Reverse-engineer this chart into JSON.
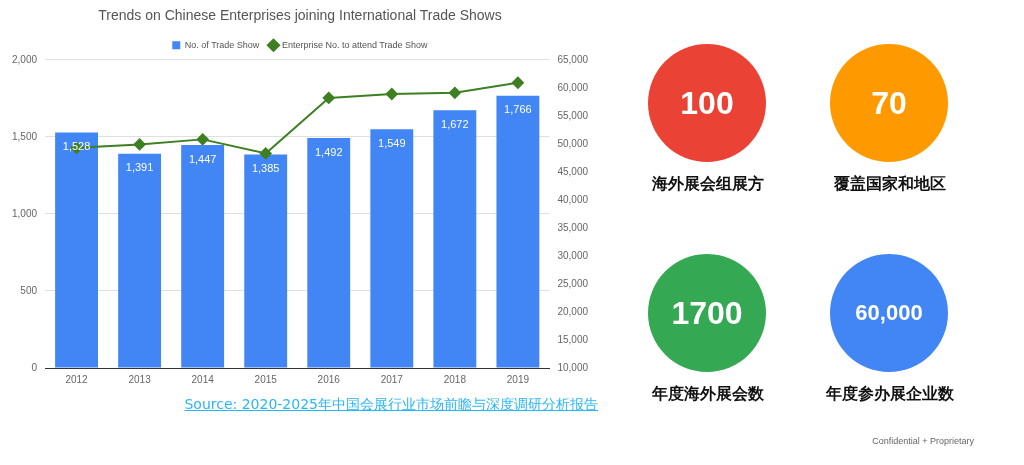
{
  "chart_data": [
    {
      "type": "bar",
      "title": "Trends on Chinese Enterprises joining International Trade Shows",
      "categories": [
        "2012",
        "2013",
        "2014",
        "2015",
        "2016",
        "2017",
        "2018",
        "2019"
      ],
      "series": [
        {
          "name": "No. of Trade Show",
          "type": "bar",
          "color": "#4285f4",
          "values": [
            1528,
            1391,
            1447,
            1385,
            1492,
            1549,
            1672,
            1766
          ],
          "value_labels": [
            "1,528",
            "1,391",
            "1,447",
            "1,385",
            "1,492",
            "1,549",
            "1,672",
            "1,766"
          ]
        },
        {
          "name": "Enterprise No. to attend Trade Show",
          "type": "line",
          "axis": "y2",
          "color": "#3f7f24",
          "marker": "diamond",
          "values": [
            49300,
            49900,
            50800,
            48300,
            58200,
            58900,
            59100,
            60900
          ]
        }
      ],
      "ylim": [
        0,
        2000
      ],
      "yticks": [
        0,
        500,
        {
          "value": 1000,
          "label": "1,000"
        },
        {
          "value": 1500,
          "label": "1,500"
        },
        {
          "value": 2000,
          "label": "2,000"
        }
      ],
      "y2lim": [
        10000,
        65000
      ],
      "y2ticks": [
        {
          "value": 10000,
          "label": "10,000"
        },
        {
          "value": 15000,
          "label": "15,000"
        },
        {
          "value": 20000,
          "label": "20,000"
        },
        {
          "value": 25000,
          "label": "25,000"
        },
        {
          "value": 30000,
          "label": "30,000"
        },
        {
          "value": 35000,
          "label": "35,000"
        },
        {
          "value": 40000,
          "label": "40,000"
        },
        {
          "value": 45000,
          "label": "45,000"
        },
        {
          "value": 50000,
          "label": "50,000"
        },
        {
          "value": 55000,
          "label": "55,000"
        },
        {
          "value": 60000,
          "label": "60,000"
        },
        {
          "value": 65000,
          "label": "65,000"
        }
      ],
      "grid": "y",
      "legend": "top",
      "annotations": [
        "Source: 2020-2025年中国会展行业市场前瞻与深度调研分析报告"
      ]
    },
    {
      "type": "other",
      "categories": [
        "海外展会组展方",
        "覆盖国家和地区",
        "年度海外展会数",
        "年度参办展企业数"
      ],
      "values": [
        100,
        70,
        1700,
        60000
      ],
      "value_labels": [
        "100",
        "70",
        "1700",
        "60,000"
      ],
      "colors": [
        "#ea4335",
        "#ff9900",
        "#34a853",
        "#4285f4"
      ],
      "annotations": [
        "Confidential + Proprietary"
      ]
    }
  ]
}
